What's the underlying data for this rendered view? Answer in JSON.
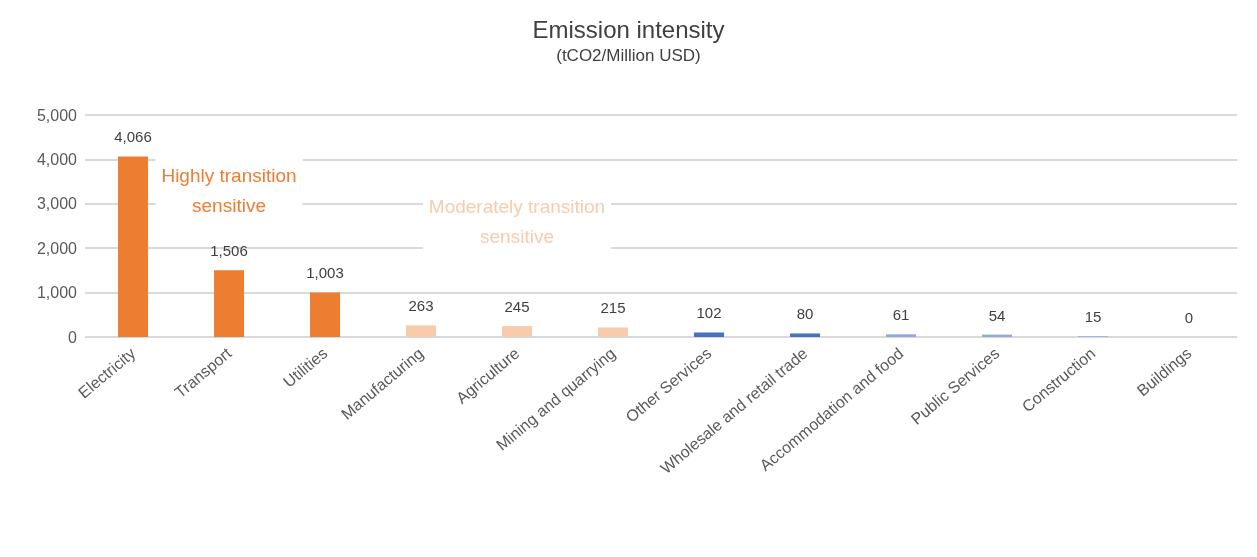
{
  "chart_data": {
    "type": "bar",
    "title": "Emission intensity",
    "subtitle": "(tCO2/Million USD)",
    "categories": [
      "Electricity",
      "Transport",
      "Utilities",
      "Manufacturing",
      "Agriculture",
      "Mining and quarrying",
      "Other Services",
      "Wholesale and retail trade",
      "Accommodation and food",
      "Public Services",
      "Construction",
      "Buildings"
    ],
    "values": [
      4066,
      1506,
      1003,
      263,
      245,
      215,
      102,
      80,
      61,
      54,
      15,
      0
    ],
    "colors": [
      "#ed7d31",
      "#ed7d31",
      "#ed7d31",
      "#f8cbad",
      "#f8cbad",
      "#f8cbad",
      "#4472c4",
      "#4472c4",
      "#8faadc",
      "#8faadc",
      "#8faadc",
      "#8faadc"
    ],
    "value_labels": [
      "4,066",
      "1,506",
      "1,003",
      "263",
      "245",
      "215",
      "102",
      "80",
      "61",
      "54",
      "15",
      "0"
    ],
    "ylim": [
      0,
      5000
    ],
    "yticks": [
      0,
      {
        "value": 1000,
        "label": "1,000"
      },
      {
        "value": 2000,
        "label": "2,000"
      },
      {
        "value": 3000,
        "label": "3,000"
      },
      {
        "value": 4000,
        "label": "4,000"
      },
      {
        "value": 5000,
        "label": "5,000"
      }
    ],
    "grid": "y",
    "annotations": [
      "Highly transition sensitive",
      "Moderately transition sensitive"
    ]
  }
}
